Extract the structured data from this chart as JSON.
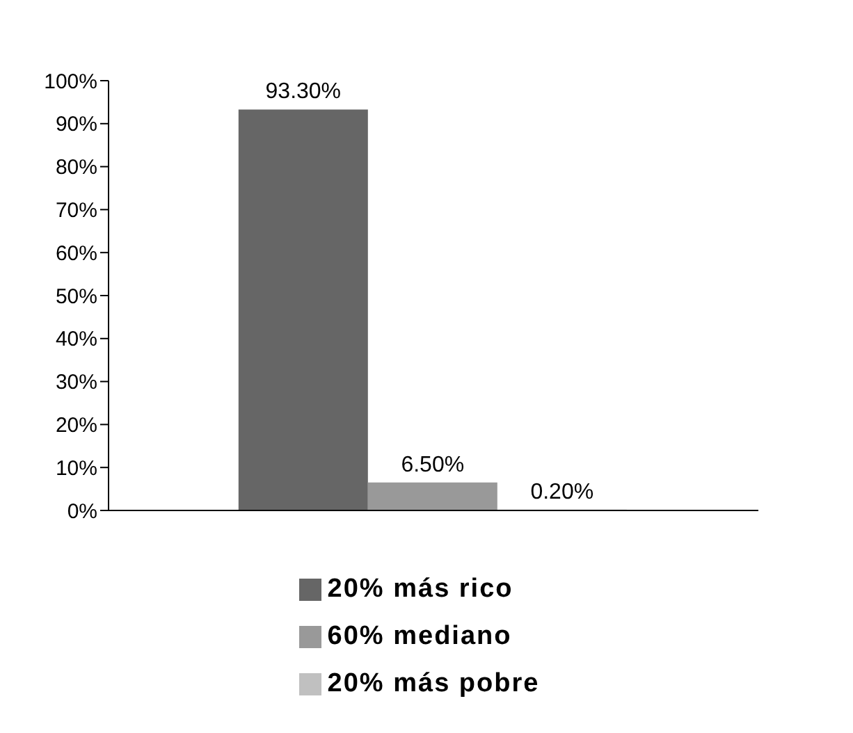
{
  "chart_data": {
    "type": "bar",
    "categories": [
      null
    ],
    "series": [
      {
        "name": "20% más rico",
        "color": "#666666",
        "values": [
          93.3
        ],
        "value_labels": [
          "93.30%"
        ]
      },
      {
        "name": "60% mediano",
        "color": "#999999",
        "values": [
          6.5
        ],
        "value_labels": [
          "6.50%"
        ]
      },
      {
        "name": "20% más pobre",
        "color": "#c0c0c0",
        "values": [
          0.2
        ],
        "value_labels": [
          "0.20%"
        ]
      }
    ],
    "ylim": [
      0,
      100
    ],
    "yticks": [
      {
        "value": 0,
        "label": "0%"
      },
      {
        "value": 10,
        "label": "10%"
      },
      {
        "value": 20,
        "label": "20%"
      },
      {
        "value": 30,
        "label": "30%"
      },
      {
        "value": 40,
        "label": "40%"
      },
      {
        "value": 50,
        "label": "50%"
      },
      {
        "value": 60,
        "label": "60%"
      },
      {
        "value": 70,
        "label": "70%"
      },
      {
        "value": 80,
        "label": "80%"
      },
      {
        "value": 90,
        "label": "90%"
      },
      {
        "value": 100,
        "label": "100%"
      }
    ],
    "grid": false,
    "legend": "bottom"
  }
}
